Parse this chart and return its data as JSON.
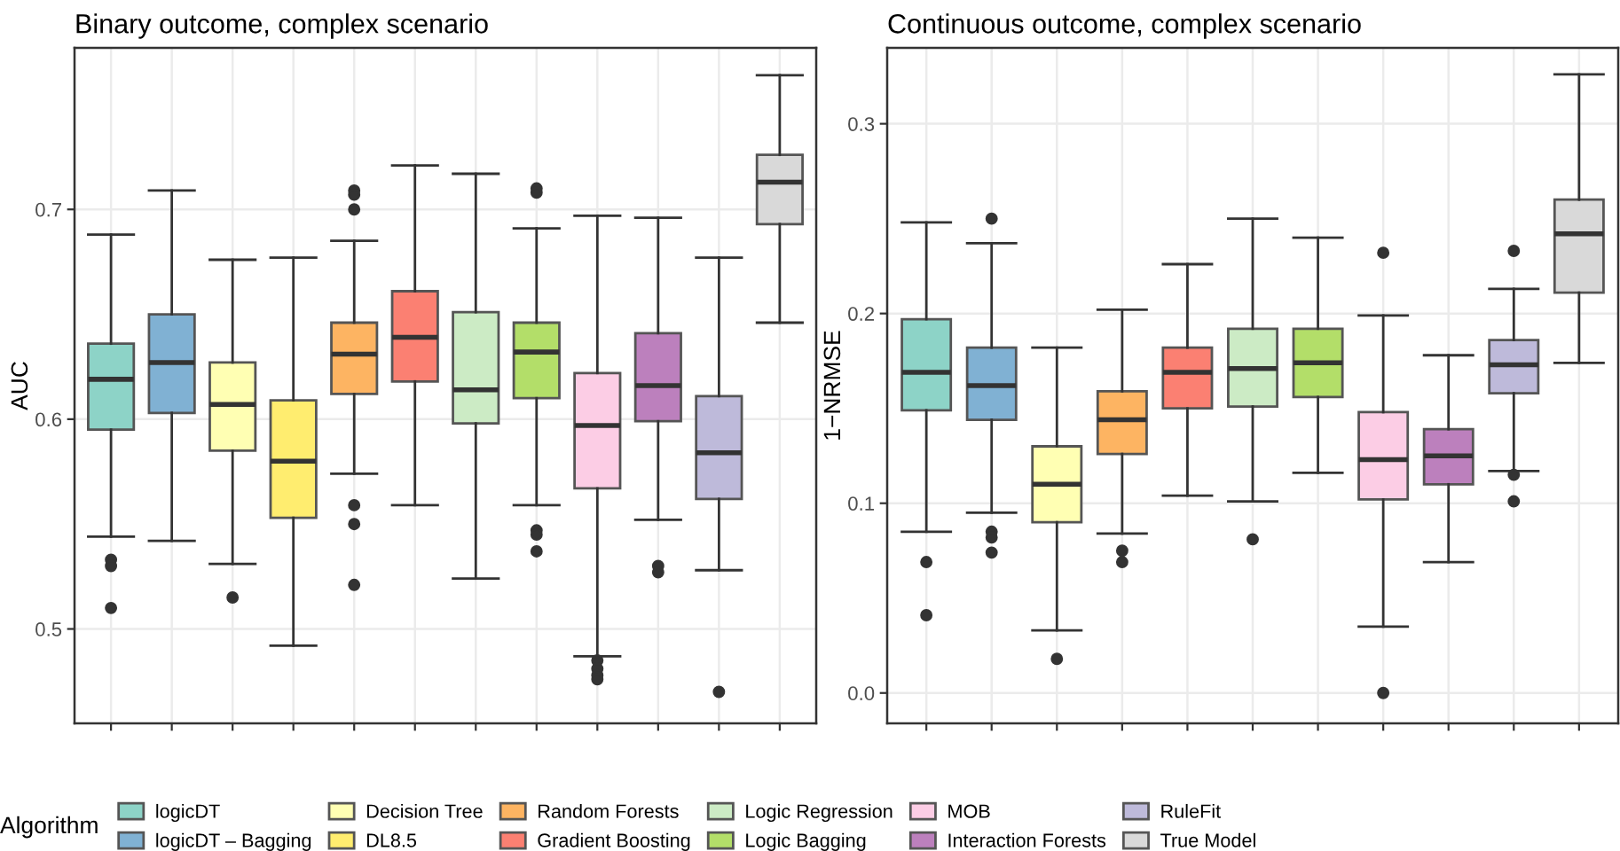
{
  "chart_data": [
    {
      "type": "box",
      "title": "Binary outcome, complex scenario",
      "ylabel": "AUC",
      "legend_title": "Algorithm",
      "legend": "bottom",
      "grid": true,
      "tick_labels": "y",
      "categories": [
        null,
        null,
        null,
        null,
        null,
        null,
        null,
        null,
        null,
        null,
        null,
        null
      ],
      "ylim": [
        0.455,
        0.777
      ],
      "yticks": [
        0.5,
        0.6,
        0.7
      ],
      "series": [
        {
          "name": "logicDT",
          "color": "#8dd3c7",
          "boxes": [
            {
              "low": 0.544,
              "q1": 0.595,
              "median": 0.619,
              "q3": 0.636,
              "high": 0.688,
              "outliers": [
                0.533,
                0.53,
                0.51
              ]
            },
            null,
            null,
            null,
            null,
            null,
            null,
            null,
            null,
            null,
            null,
            null
          ]
        },
        {
          "name": "logicDT – Bagging",
          "color": "#80b1d3",
          "boxes": [
            null,
            {
              "low": 0.542,
              "q1": 0.603,
              "median": 0.627,
              "q3": 0.65,
              "high": 0.709
            },
            null,
            null,
            null,
            null,
            null,
            null,
            null,
            null,
            null,
            null
          ]
        },
        {
          "name": "Decision Tree",
          "color": "#ffffb3",
          "boxes": [
            null,
            null,
            {
              "low": 0.531,
              "q1": 0.585,
              "median": 0.607,
              "q3": 0.627,
              "high": 0.676,
              "outliers": [
                0.515
              ]
            },
            null,
            null,
            null,
            null,
            null,
            null,
            null,
            null,
            null
          ]
        },
        {
          "name": "DL8.5",
          "color": "#ffed6f",
          "boxes": [
            null,
            null,
            null,
            {
              "low": 0.492,
              "q1": 0.553,
              "median": 0.58,
              "q3": 0.609,
              "high": 0.677
            },
            null,
            null,
            null,
            null,
            null,
            null,
            null,
            null
          ]
        },
        {
          "name": "Random Forests",
          "color": "#fdb462",
          "boxes": [
            null,
            null,
            null,
            null,
            {
              "low": 0.574,
              "q1": 0.612,
              "median": 0.631,
              "q3": 0.646,
              "high": 0.685,
              "outliers": [
                0.709,
                0.707,
                0.7,
                0.559,
                0.55,
                0.521
              ]
            },
            null,
            null,
            null,
            null,
            null,
            null,
            null
          ]
        },
        {
          "name": "Gradient Boosting",
          "color": "#fb8072",
          "boxes": [
            null,
            null,
            null,
            null,
            null,
            {
              "low": 0.559,
              "q1": 0.618,
              "median": 0.639,
              "q3": 0.661,
              "high": 0.721
            },
            null,
            null,
            null,
            null,
            null,
            null
          ]
        },
        {
          "name": "Logic Regression",
          "color": "#ccebc5",
          "boxes": [
            null,
            null,
            null,
            null,
            null,
            null,
            {
              "low": 0.524,
              "q1": 0.598,
              "median": 0.614,
              "q3": 0.651,
              "high": 0.717
            },
            null,
            null,
            null,
            null,
            null
          ]
        },
        {
          "name": "Logic Bagging",
          "color": "#b3de69",
          "boxes": [
            null,
            null,
            null,
            null,
            null,
            null,
            null,
            {
              "low": 0.559,
              "q1": 0.61,
              "median": 0.632,
              "q3": 0.646,
              "high": 0.691,
              "outliers": [
                0.71,
                0.708,
                0.547,
                0.545,
                0.537
              ]
            },
            null,
            null,
            null,
            null
          ]
        },
        {
          "name": "MOB",
          "color": "#fccde5",
          "boxes": [
            null,
            null,
            null,
            null,
            null,
            null,
            null,
            null,
            {
              "low": 0.487,
              "q1": 0.567,
              "median": 0.597,
              "q3": 0.622,
              "high": 0.697,
              "outliers": [
                0.485,
                0.481,
                0.478,
                0.476
              ]
            },
            null,
            null,
            null
          ]
        },
        {
          "name": "Interaction Forests",
          "color": "#bc80bd",
          "boxes": [
            null,
            null,
            null,
            null,
            null,
            null,
            null,
            null,
            null,
            {
              "low": 0.552,
              "q1": 0.599,
              "median": 0.616,
              "q3": 0.641,
              "high": 0.696,
              "outliers": [
                0.53,
                0.527
              ]
            },
            null,
            null
          ]
        },
        {
          "name": "RuleFit",
          "color": "#bebada",
          "boxes": [
            null,
            null,
            null,
            null,
            null,
            null,
            null,
            null,
            null,
            null,
            {
              "low": 0.528,
              "q1": 0.562,
              "median": 0.584,
              "q3": 0.611,
              "high": 0.677,
              "outliers": [
                0.47
              ]
            },
            null
          ]
        },
        {
          "name": "True Model",
          "color": "#d9d9d9",
          "boxes": [
            null,
            null,
            null,
            null,
            null,
            null,
            null,
            null,
            null,
            null,
            null,
            {
              "low": 0.646,
              "q1": 0.693,
              "median": 0.713,
              "q3": 0.726,
              "high": 0.764
            }
          ]
        }
      ]
    },
    {
      "type": "box",
      "title": "Continuous outcome, complex scenario",
      "ylabel": "1−NRMSE",
      "grid": true,
      "tick_labels": "y",
      "categories": [
        null,
        null,
        null,
        null,
        null,
        null,
        null,
        null,
        null,
        null,
        null
      ],
      "ylim": [
        -0.016,
        0.34
      ],
      "yticks": [
        {
          "value": 0.0,
          "label": "0.0"
        },
        0.1,
        0.2,
        0.3
      ],
      "series": [
        {
          "color": "#8dd3c7",
          "boxes": [
            {
              "low": 0.085,
              "q1": 0.149,
              "median": 0.169,
              "q3": 0.197,
              "high": 0.248,
              "outliers": [
                0.069,
                0.041
              ]
            },
            null,
            null,
            null,
            null,
            null,
            null,
            null,
            null,
            null,
            null
          ]
        },
        {
          "color": "#80b1d3",
          "boxes": [
            null,
            {
              "low": 0.095,
              "q1": 0.144,
              "median": 0.162,
              "q3": 0.182,
              "high": 0.237,
              "outliers": [
                0.25,
                0.085,
                0.082,
                0.074
              ]
            },
            null,
            null,
            null,
            null,
            null,
            null,
            null,
            null,
            null
          ]
        },
        {
          "color": "#ffffb3",
          "boxes": [
            null,
            null,
            {
              "low": 0.033,
              "q1": 0.09,
              "median": 0.11,
              "q3": 0.13,
              "high": 0.182,
              "outliers": [
                0.018
              ]
            },
            null,
            null,
            null,
            null,
            null,
            null,
            null,
            null
          ]
        },
        {
          "color": "#fdb462",
          "boxes": [
            null,
            null,
            null,
            {
              "low": 0.084,
              "q1": 0.126,
              "median": 0.144,
              "q3": 0.159,
              "high": 0.202,
              "outliers": [
                0.075,
                0.069
              ]
            },
            null,
            null,
            null,
            null,
            null,
            null,
            null
          ]
        },
        {
          "color": "#fb8072",
          "boxes": [
            null,
            null,
            null,
            null,
            {
              "low": 0.104,
              "q1": 0.15,
              "median": 0.169,
              "q3": 0.182,
              "high": 0.226
            },
            null,
            null,
            null,
            null,
            null,
            null
          ]
        },
        {
          "color": "#ccebc5",
          "boxes": [
            null,
            null,
            null,
            null,
            null,
            {
              "low": 0.101,
              "q1": 0.151,
              "median": 0.171,
              "q3": 0.192,
              "high": 0.25,
              "outliers": [
                0.081
              ]
            },
            null,
            null,
            null,
            null,
            null
          ]
        },
        {
          "color": "#b3de69",
          "boxes": [
            null,
            null,
            null,
            null,
            null,
            null,
            {
              "low": 0.116,
              "q1": 0.156,
              "median": 0.174,
              "q3": 0.192,
              "high": 0.24
            },
            null,
            null,
            null,
            null
          ]
        },
        {
          "color": "#fccde5",
          "boxes": [
            null,
            null,
            null,
            null,
            null,
            null,
            null,
            {
              "low": 0.035,
              "q1": 0.102,
              "median": 0.123,
              "q3": 0.148,
              "high": 0.199,
              "outliers": [
                0.232,
                0.0
              ]
            },
            null,
            null,
            null
          ]
        },
        {
          "color": "#bc80bd",
          "boxes": [
            null,
            null,
            null,
            null,
            null,
            null,
            null,
            null,
            {
              "low": 0.069,
              "q1": 0.11,
              "median": 0.125,
              "q3": 0.139,
              "high": 0.178
            },
            null,
            null
          ]
        },
        {
          "color": "#bebada",
          "boxes": [
            null,
            null,
            null,
            null,
            null,
            null,
            null,
            null,
            null,
            {
              "low": 0.117,
              "q1": 0.158,
              "median": 0.173,
              "q3": 0.186,
              "high": 0.213,
              "outliers": [
                0.233,
                0.115,
                0.101
              ]
            },
            null
          ]
        },
        {
          "color": "#d9d9d9",
          "boxes": [
            null,
            null,
            null,
            null,
            null,
            null,
            null,
            null,
            null,
            null,
            {
              "low": 0.174,
              "q1": 0.211,
              "median": 0.242,
              "q3": 0.26,
              "high": 0.326
            }
          ]
        }
      ]
    }
  ]
}
